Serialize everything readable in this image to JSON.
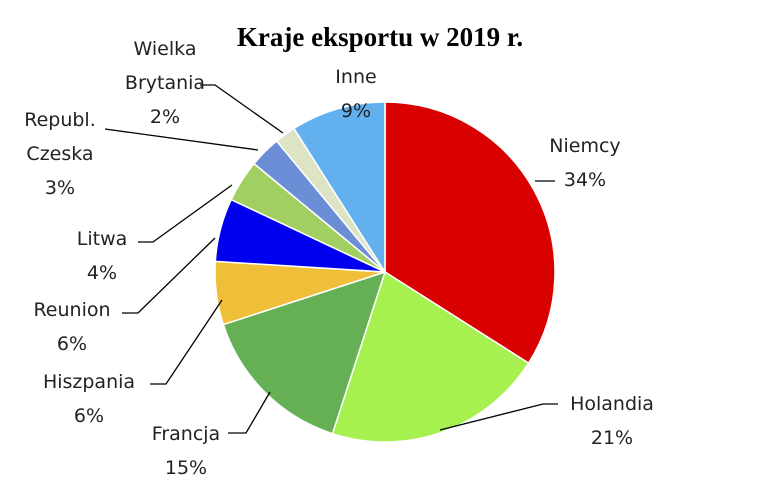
{
  "chart_data": {
    "type": "pie",
    "title": "Kraje eksportu w 2019 r.",
    "slices": [
      {
        "label": "Niemcy",
        "value": 34,
        "value_label": "34%",
        "color": "#d90000"
      },
      {
        "label": "Holandia",
        "value": 21,
        "value_label": "21%",
        "color": "#a6f04f"
      },
      {
        "label": "Francja",
        "value": 15,
        "value_label": "15%",
        "color": "#65b055"
      },
      {
        "label": "Hiszpania",
        "value": 6,
        "value_label": "6%",
        "color": "#f0bf3a"
      },
      {
        "label": "Reunion",
        "value": 6,
        "value_label": "6%",
        "color": "#0000ee"
      },
      {
        "label": "Litwa",
        "value": 4,
        "value_label": "4%",
        "color": "#a2cf62"
      },
      {
        "label": "Republ. Czeska",
        "value": 3,
        "value_label": "3%",
        "color": "#6b8ed6"
      },
      {
        "label": "Wielka Brytania",
        "value": 2,
        "value_label": "2%",
        "color": "#dde3c5"
      },
      {
        "label": "Inne",
        "value": 9,
        "value_label": "9%",
        "color": "#63b0ee"
      }
    ],
    "legend": "none"
  }
}
